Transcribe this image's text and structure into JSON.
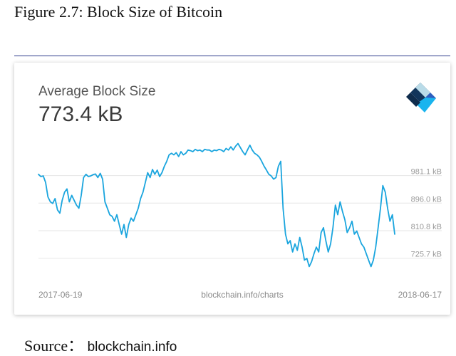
{
  "figure": {
    "title": "Figure 2.7: Block Size of Bitcoin",
    "source_label": "Source：",
    "source_value": "blockchain.info"
  },
  "panel": {
    "metric_label": "Average Block Size",
    "metric_value": "773.4 kB",
    "logo_icon": "blockchain-logo-icon"
  },
  "chart_data": {
    "type": "line",
    "title": "",
    "xlabel": "",
    "ylabel": "",
    "x_start_label": "2017-06-19",
    "x_end_label": "2018-06-17",
    "x_center_label": "blockchain.info/charts",
    "ytick_values": [
      981.1,
      896.0,
      810.8,
      725.7
    ],
    "ytick_labels": [
      "981.1 kB",
      "896.0 kB",
      "810.8 kB",
      "725.7 kB"
    ],
    "ylim": [
      670,
      1110
    ],
    "grid": true,
    "line_color": "#1aa5de",
    "series": [
      {
        "values": [
          985,
          978,
          980,
          960,
          915,
          900,
          895,
          910,
          875,
          865,
          905,
          930,
          940,
          900,
          920,
          905,
          890,
          880,
          920,
          975,
          985,
          978,
          980,
          984,
          986,
          975,
          988,
          970,
          900,
          880,
          860,
          855,
          840,
          860,
          830,
          800,
          830,
          790,
          830,
          850,
          840,
          860,
          880,
          910,
          930,
          960,
          990,
          975,
          1000,
          985,
          998,
          978,
          990,
          1010,
          1025,
          1045,
          1050,
          1045,
          1052,
          1040,
          1055,
          1045,
          1050,
          1060,
          1058,
          1055,
          1062,
          1058,
          1060,
          1055,
          1062,
          1060,
          1060,
          1055,
          1060,
          1058,
          1062,
          1060,
          1055,
          1065,
          1060,
          1070,
          1060,
          1072,
          1080,
          1068,
          1055,
          1045,
          1060,
          1075,
          1060,
          1050,
          1045,
          1038,
          1025,
          1010,
          998,
          985,
          980,
          970,
          975,
          1010,
          1025,
          880,
          800,
          770,
          780,
          745,
          770,
          750,
          790,
          760,
          720,
          725,
          700,
          715,
          740,
          760,
          745,
          805,
          820,
          780,
          745,
          770,
          820,
          890,
          860,
          900,
          870,
          845,
          805,
          820,
          840,
          800,
          810,
          790,
          770,
          760,
          740,
          720,
          700,
          720,
          760,
          820,
          880,
          950,
          930,
          880,
          840,
          860,
          800
        ]
      }
    ]
  }
}
